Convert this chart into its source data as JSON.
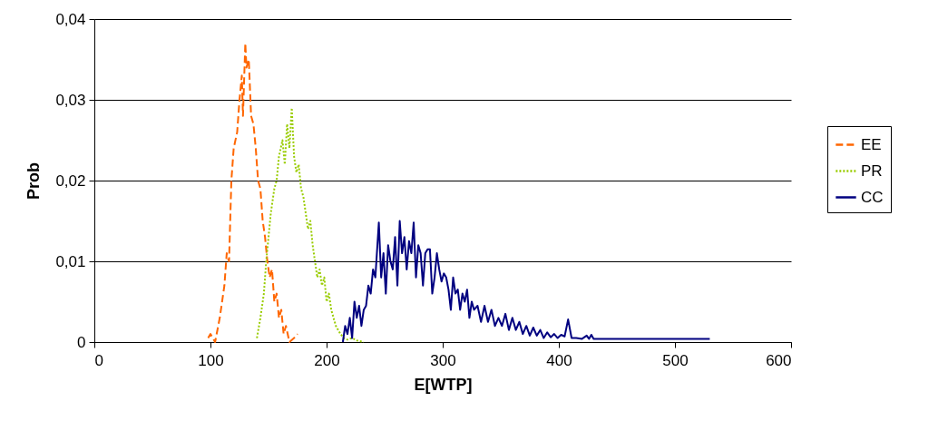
{
  "chart_data": {
    "type": "line",
    "xlabel": "E[WTP]",
    "ylabel": "Prob",
    "xlim": [
      0,
      600
    ],
    "xticks": [
      0,
      100,
      200,
      300,
      400,
      500,
      600
    ],
    "ylim": [
      0,
      0.04
    ],
    "yticks": [
      0,
      {
        "value": 0.01,
        "label": "0,01"
      },
      {
        "value": 0.02,
        "label": "0,02"
      },
      {
        "value": 0.03,
        "label": "0,03"
      },
      {
        "value": 0.04,
        "label": "0,04"
      }
    ],
    "grid": "y",
    "legend": "right",
    "marker": "none",
    "series": [
      {
        "name": "EE",
        "color": "#ff6600",
        "line_style": "dashed",
        "x": [
          98,
          100,
          104,
          108,
          112,
          114,
          116,
          118,
          120,
          123,
          125,
          127,
          128,
          130,
          131,
          133,
          135,
          137,
          139,
          141,
          143,
          145,
          147,
          149,
          151,
          153,
          155,
          157,
          159,
          161,
          163,
          165,
          168,
          172,
          175
        ],
        "values": [
          0.0005,
          0.001,
          0,
          0.003,
          0.007,
          0.011,
          0.01,
          0.02,
          0.024,
          0.026,
          0.03,
          0.033,
          0.028,
          0.037,
          0.034,
          0.035,
          0.028,
          0.027,
          0.024,
          0.02,
          0.019,
          0.015,
          0.013,
          0.01,
          0.008,
          0.009,
          0.005,
          0.006,
          0.003,
          0.004,
          0.001,
          0.002,
          0,
          0.0005,
          0.001
        ]
      },
      {
        "name": "PR",
        "color": "#99cc00",
        "line_style": "dotted",
        "x": [
          140,
          143,
          146,
          148,
          150,
          152,
          155,
          157,
          159,
          162,
          164,
          166,
          168,
          170,
          172,
          174,
          176,
          178,
          180,
          182,
          184,
          186,
          188,
          190,
          192,
          194,
          196,
          198,
          200,
          202,
          204,
          206,
          208,
          210,
          212,
          215,
          218,
          222,
          226,
          232
        ],
        "values": [
          0.0005,
          0.003,
          0.006,
          0.01,
          0.013,
          0.016,
          0.019,
          0.02,
          0.023,
          0.025,
          0.022,
          0.027,
          0.024,
          0.029,
          0.023,
          0.021,
          0.022,
          0.019,
          0.018,
          0.016,
          0.014,
          0.015,
          0.012,
          0.01,
          0.008,
          0.009,
          0.007,
          0.008,
          0.005,
          0.006,
          0.004,
          0.003,
          0.002,
          0.0015,
          0.001,
          0.0005,
          0.0003,
          0.0005,
          0.0002,
          0
        ]
      },
      {
        "name": "CC",
        "color": "#000080",
        "line_style": "solid",
        "x": [
          214,
          216,
          218,
          220,
          222,
          224,
          226,
          228,
          230,
          232,
          234,
          236,
          238,
          240,
          242,
          245,
          247,
          249,
          251,
          253,
          255,
          257,
          259,
          261,
          263,
          265,
          267,
          269,
          271,
          273,
          275,
          277,
          279,
          281,
          283,
          285,
          287,
          289,
          291,
          293,
          295,
          297,
          299,
          301,
          303,
          305,
          307,
          309,
          311,
          313,
          315,
          317,
          319,
          321,
          323,
          325,
          327,
          330,
          333,
          336,
          339,
          342,
          345,
          348,
          351,
          354,
          357,
          360,
          363,
          366,
          369,
          372,
          375,
          378,
          381,
          384,
          387,
          390,
          393,
          396,
          399,
          402,
          405,
          408,
          411,
          415,
          420,
          424,
          426,
          428,
          430,
          440,
          500,
          530
        ],
        "values": [
          0,
          0.002,
          0.001,
          0.003,
          0.0005,
          0.005,
          0.003,
          0.0045,
          0.002,
          0.004,
          0.0045,
          0.007,
          0.006,
          0.009,
          0.008,
          0.0148,
          0.008,
          0.011,
          0.006,
          0.012,
          0.01,
          0.009,
          0.013,
          0.007,
          0.015,
          0.011,
          0.013,
          0.009,
          0.0125,
          0.011,
          0.0148,
          0.008,
          0.012,
          0.011,
          0.007,
          0.011,
          0.0115,
          0.0115,
          0.006,
          0.008,
          0.011,
          0.009,
          0.0075,
          0.0085,
          0.008,
          0.0065,
          0.004,
          0.008,
          0.006,
          0.0065,
          0.004,
          0.006,
          0.005,
          0.0065,
          0.003,
          0.005,
          0.004,
          0.0045,
          0.0025,
          0.0045,
          0.0025,
          0.004,
          0.002,
          0.003,
          0.002,
          0.0035,
          0.0015,
          0.003,
          0.0015,
          0.0025,
          0.001,
          0.002,
          0.0008,
          0.0018,
          0.0008,
          0.0015,
          0.0005,
          0.0012,
          0.0006,
          0.001,
          0.0005,
          0.0009,
          0.0007,
          0.0028,
          0.0005,
          0.0005,
          0.0004,
          0.0008,
          0.0004,
          0.0009,
          0.0004,
          0.0004,
          0.0004,
          0.0004
        ]
      }
    ]
  }
}
